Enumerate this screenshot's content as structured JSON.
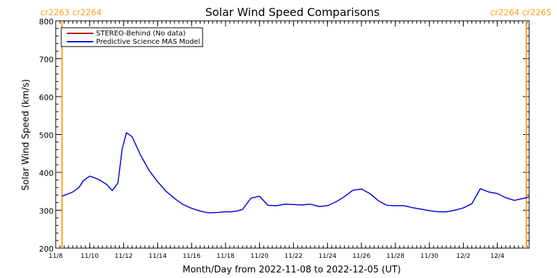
{
  "chart_data": {
    "type": "line",
    "title": "Solar Wind Speed Comparisons",
    "xlabel": "Month/Day from 2022-11-08 to 2022-12-05 (UT)",
    "ylabel": "Solar Wind Speed (km/s)",
    "xlim": [
      "2022-11-08",
      "2022-12-05T21:00"
    ],
    "ylim": [
      200,
      800
    ],
    "yticks": [
      200,
      300,
      400,
      500,
      600,
      700,
      800
    ],
    "xtick_labels": [
      "11/8",
      "11/10",
      "11/12",
      "11/14",
      "11/16",
      "11/18",
      "11/20",
      "11/22",
      "11/24",
      "11/26",
      "11/28",
      "11/30",
      "12/2",
      "12/4"
    ],
    "xtick_dates": [
      "2022-11-08",
      "2022-11-10",
      "2022-11-12",
      "2022-11-14",
      "2022-11-16",
      "2022-11-18",
      "2022-11-20",
      "2022-11-22",
      "2022-11-24",
      "2022-11-26",
      "2022-11-28",
      "2022-11-30",
      "2022-12-02",
      "2022-12-04"
    ],
    "rotation_markers": [
      {
        "label": "cr2263 cr2264",
        "date": "2022-11-08T09:00",
        "color": "#ff9e1f"
      },
      {
        "label": "cr2264 cr2265",
        "date": "2022-12-05T17:00",
        "color": "#ff9e1f"
      }
    ],
    "legend": {
      "placement": "top-left",
      "entries": [
        {
          "name": "STEREO-Behind (No data)",
          "color": "#c00000"
        },
        {
          "name": "Predictive Science MAS Model",
          "color": "#0000e0"
        }
      ]
    },
    "series": [
      {
        "name": "Predictive Science MAS Model",
        "color": "#0000e0",
        "x": [
          "2022-11-08T09:00",
          "2022-11-09T00:00",
          "2022-11-09T09:00",
          "2022-11-09T15:00",
          "2022-11-10T00:00",
          "2022-11-10T12:00",
          "2022-11-11T00:00",
          "2022-11-11T08:00",
          "2022-11-11T16:00",
          "2022-11-11T22:00",
          "2022-11-12T04:00",
          "2022-11-12T12:00",
          "2022-11-13T00:00",
          "2022-11-13T12:00",
          "2022-11-14T00:00",
          "2022-11-14T12:00",
          "2022-11-15T00:00",
          "2022-11-15T12:00",
          "2022-11-16T00:00",
          "2022-11-16T12:00",
          "2022-11-17T00:00",
          "2022-11-17T12:00",
          "2022-11-18T00:00",
          "2022-11-18T08:00",
          "2022-11-18T16:00",
          "2022-11-19T00:00",
          "2022-11-19T12:00",
          "2022-11-20T00:00",
          "2022-11-20T12:00",
          "2022-11-21T00:00",
          "2022-11-21T12:00",
          "2022-11-22T00:00",
          "2022-11-22T12:00",
          "2022-11-23T00:00",
          "2022-11-23T12:00",
          "2022-11-24T00:00",
          "2022-11-24T12:00",
          "2022-11-25T00:00",
          "2022-11-25T12:00",
          "2022-11-26T00:00",
          "2022-11-26T12:00",
          "2022-11-27T00:00",
          "2022-11-27T12:00",
          "2022-11-28T00:00",
          "2022-11-28T12:00",
          "2022-11-29T00:00",
          "2022-11-29T12:00",
          "2022-11-30T00:00",
          "2022-11-30T12:00",
          "2022-12-01T00:00",
          "2022-12-01T12:00",
          "2022-12-02T00:00",
          "2022-12-02T12:00",
          "2022-12-03T00:00",
          "2022-12-03T12:00",
          "2022-12-04T00:00",
          "2022-12-04T12:00",
          "2022-12-05T00:00",
          "2022-12-05T12:00",
          "2022-12-05T21:00"
        ],
        "values": [
          337,
          348,
          360,
          378,
          390,
          382,
          368,
          352,
          372,
          462,
          505,
          494,
          445,
          405,
          375,
          350,
          331,
          315,
          305,
          298,
          293,
          294,
          296,
          296,
          298,
          302,
          332,
          337,
          313,
          312,
          316,
          315,
          314,
          316,
          310,
          312,
          322,
          336,
          353,
          356,
          344,
          325,
          313,
          312,
          312,
          307,
          303,
          299,
          296,
          296,
          300,
          306,
          317,
          357,
          348,
          344,
          333,
          326,
          331,
          335
        ]
      }
    ]
  }
}
